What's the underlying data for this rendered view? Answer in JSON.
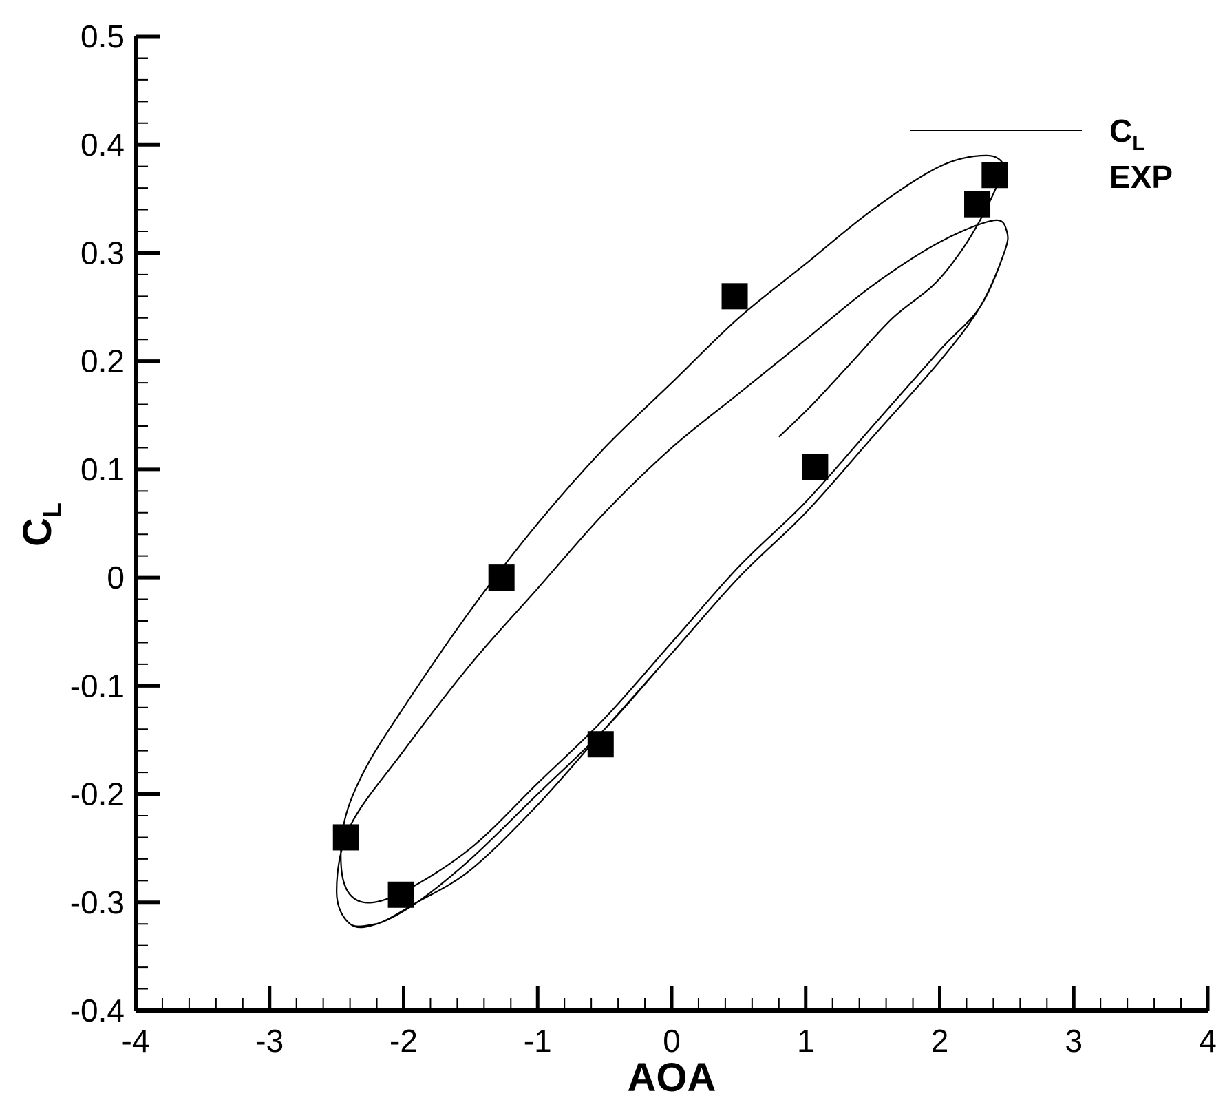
{
  "chart_data": {
    "type": "line",
    "xlabel": "AOA",
    "ylabel": "C",
    "ylabel_sub": "L",
    "xlim": [
      -4,
      4
    ],
    "ylim": [
      -0.4,
      0.5
    ],
    "x_ticks": [
      "-4",
      "-3",
      "-2",
      "-1",
      "0",
      "1",
      "2",
      "3",
      "4"
    ],
    "y_ticks": [
      "-0.4",
      "-0.3",
      "-0.2",
      "-0.1",
      "0",
      "0.1",
      "0.2",
      "0.3",
      "0.4",
      "0.5"
    ],
    "grid": false,
    "legend": {
      "position": "top-right",
      "entries": [
        {
          "label": "C",
          "label_sub": "L",
          "marker": "line"
        },
        {
          "label": "EXP",
          "marker": "none"
        }
      ]
    },
    "series": [
      {
        "name": "CL",
        "style": "line",
        "description": "computed hysteresis loop (several cycles; first cycle starts near AOA 0.8)",
        "points": [
          [
            0.8,
            0.13
          ],
          [
            1.05,
            0.16
          ],
          [
            1.35,
            0.2
          ],
          [
            1.65,
            0.24
          ],
          [
            1.95,
            0.27
          ],
          [
            2.15,
            0.3
          ],
          [
            2.3,
            0.33
          ],
          [
            2.42,
            0.36
          ],
          [
            2.48,
            0.38
          ],
          [
            2.35,
            0.39
          ],
          [
            2.0,
            0.38
          ],
          [
            1.5,
            0.34
          ],
          [
            1.0,
            0.29
          ],
          [
            0.5,
            0.24
          ],
          [
            0.0,
            0.18
          ],
          [
            -0.5,
            0.12
          ],
          [
            -1.0,
            0.05
          ],
          [
            -1.5,
            -0.03
          ],
          [
            -2.0,
            -0.12
          ],
          [
            -2.3,
            -0.18
          ],
          [
            -2.45,
            -0.23
          ],
          [
            -2.45,
            -0.28
          ],
          [
            -2.3,
            -0.3
          ],
          [
            -2.0,
            -0.29
          ],
          [
            -1.5,
            -0.25
          ],
          [
            -1.0,
            -0.19
          ],
          [
            -0.5,
            -0.13
          ],
          [
            0.0,
            -0.06
          ],
          [
            0.5,
            0.01
          ],
          [
            1.0,
            0.07
          ],
          [
            1.5,
            0.14
          ],
          [
            2.0,
            0.21
          ],
          [
            2.3,
            0.25
          ],
          [
            2.48,
            0.3
          ],
          [
            2.5,
            0.32
          ],
          [
            2.4,
            0.33
          ],
          [
            2.0,
            0.31
          ],
          [
            1.5,
            0.27
          ],
          [
            1.0,
            0.22
          ],
          [
            0.5,
            0.17
          ],
          [
            0.0,
            0.12
          ],
          [
            -0.5,
            0.06
          ],
          [
            -1.0,
            -0.01
          ],
          [
            -1.5,
            -0.08
          ],
          [
            -2.0,
            -0.16
          ],
          [
            -2.4,
            -0.23
          ],
          [
            -2.5,
            -0.29
          ],
          [
            -2.4,
            -0.32
          ],
          [
            -2.2,
            -0.32
          ],
          [
            -1.9,
            -0.3
          ],
          [
            -1.5,
            -0.27
          ],
          [
            -1.0,
            -0.21
          ],
          [
            -0.5,
            -0.14
          ],
          [
            0.0,
            -0.07
          ],
          [
            0.5,
            0.0
          ],
          [
            1.0,
            0.06
          ],
          [
            1.5,
            0.13
          ],
          [
            2.0,
            0.2
          ],
          [
            2.3,
            0.25
          ],
          [
            2.48,
            0.3
          ],
          [
            2.5,
            0.32
          ],
          [
            2.4,
            0.33
          ],
          [
            2.0,
            0.31
          ],
          [
            1.5,
            0.27
          ],
          [
            1.0,
            0.22
          ],
          [
            0.5,
            0.17
          ],
          [
            0.0,
            0.12
          ],
          [
            -0.5,
            0.06
          ],
          [
            -1.0,
            -0.01
          ],
          [
            -1.5,
            -0.08
          ],
          [
            -2.0,
            -0.16
          ],
          [
            -2.4,
            -0.23
          ],
          [
            -2.5,
            -0.29
          ],
          [
            -2.4,
            -0.32
          ],
          [
            -2.2,
            -0.32
          ],
          [
            -1.9,
            -0.3
          ],
          [
            -1.5,
            -0.26
          ],
          [
            -1.0,
            -0.2
          ],
          [
            -0.5,
            -0.14
          ],
          [
            0.0,
            -0.07
          ],
          [
            0.5,
            0.0
          ],
          [
            1.0,
            0.06
          ],
          [
            1.5,
            0.13
          ],
          [
            2.0,
            0.2
          ],
          [
            2.3,
            0.25
          ],
          [
            2.48,
            0.3
          ],
          [
            2.5,
            0.32
          ],
          [
            2.4,
            0.33
          ],
          [
            2.0,
            0.31
          ],
          [
            1.5,
            0.27
          ],
          [
            1.0,
            0.22
          ],
          [
            0.5,
            0.17
          ],
          [
            0.0,
            0.12
          ],
          [
            -0.5,
            0.06
          ],
          [
            -1.0,
            -0.01
          ],
          [
            -1.5,
            -0.08
          ],
          [
            -2.0,
            -0.16
          ],
          [
            -2.4,
            -0.23
          ],
          [
            -2.5,
            -0.29
          ],
          [
            -2.4,
            -0.32
          ],
          [
            -2.2,
            -0.32
          ]
        ]
      },
      {
        "name": "EXP",
        "style": "square-marker",
        "points": [
          [
            -2.43,
            -0.24
          ],
          [
            -2.02,
            -0.293
          ],
          [
            -1.27,
            0.0
          ],
          [
            -0.53,
            -0.154
          ],
          [
            0.47,
            0.26
          ],
          [
            1.07,
            0.102
          ],
          [
            2.28,
            0.345
          ],
          [
            2.41,
            0.372
          ]
        ]
      }
    ]
  }
}
